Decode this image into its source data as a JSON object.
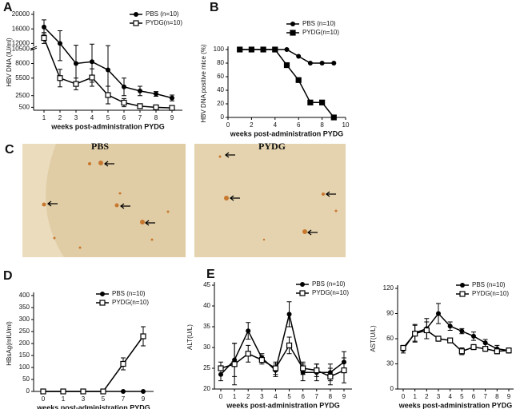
{
  "chart_data": [
    {
      "type": "line",
      "label": "A",
      "ylabel": "HBV DNA (IU/ml)",
      "xlabel": "weeks post-administration PYDG",
      "categories": [
        "1",
        "2",
        "3",
        "4",
        "5",
        "6",
        "7",
        "8",
        "9"
      ],
      "ylim": [
        0,
        20000
      ],
      "ybreak": 10500,
      "yticks": [
        500,
        2500,
        5500,
        8000,
        10500,
        12000,
        16000,
        20000
      ],
      "series": [
        {
          "name": "PBS   (n=10)",
          "color": "#000000",
          "marker": "circle",
          "values": [
            16500,
            12000,
            8000,
            8300,
            6900,
            4000,
            3300,
            2800,
            2100
          ],
          "errors": [
            2000,
            3500,
            3500,
            3500,
            4500,
            1500,
            800,
            400,
            500
          ]
        },
        {
          "name": "PYDG(n=10)",
          "color": "#000000",
          "marker": "open-square",
          "values": [
            13500,
            5500,
            4500,
            5600,
            2600,
            1300,
            700,
            500,
            400
          ],
          "errors": [
            1500,
            1500,
            1000,
            1500,
            1500,
            700,
            300,
            200,
            150
          ]
        }
      ]
    },
    {
      "type": "line",
      "label": "B",
      "ylabel": "HBV DNA positive mice  (%)",
      "xlabel": "weeks post-administration PYDG",
      "x": [
        1,
        2,
        3,
        4,
        5,
        6,
        7,
        8,
        9
      ],
      "xlim": [
        0,
        10
      ],
      "xticks": [
        0,
        2,
        4,
        6,
        8,
        10
      ],
      "ylim": [
        0,
        100
      ],
      "yticks": [
        0,
        20,
        40,
        60,
        80,
        100
      ],
      "series": [
        {
          "name": "PBS   (n=10)",
          "color": "#000000",
          "marker": "circle",
          "values": [
            100,
            100,
            100,
            100,
            100,
            90,
            80,
            80,
            80
          ]
        },
        {
          "name": "PYDG(n=10)",
          "color": "#000000",
          "marker": "square",
          "values": [
            100,
            100,
            100,
            100,
            77,
            55,
            22,
            22,
            0
          ]
        }
      ]
    },
    {
      "type": "line",
      "label": "D",
      "ylabel": "HBsAg(mIU/ml)",
      "xlabel": "weeks post-administration PYDG",
      "categories": [
        "0",
        "1",
        "3",
        "5",
        "7",
        "9"
      ],
      "ylim": [
        0,
        400
      ],
      "yticks": [
        0,
        50,
        100,
        150,
        200,
        250,
        300,
        350,
        400
      ],
      "series": [
        {
          "name": "PBS    (n=10)",
          "color": "#000000",
          "marker": "circle",
          "values": [
            0,
            0,
            0,
            0,
            0,
            0
          ],
          "errors": [
            0,
            0,
            0,
            0,
            0,
            0
          ]
        },
        {
          "name": "PYDG(n=10)",
          "color": "#000000",
          "marker": "open-square",
          "values": [
            0,
            0,
            0,
            0,
            115,
            230
          ],
          "errors": [
            0,
            0,
            0,
            0,
            25,
            40
          ]
        }
      ]
    },
    {
      "type": "line",
      "label": "E",
      "ylabel": "ALT(U/L)",
      "xlabel": "weeks post-administration PYDG",
      "categories": [
        "0",
        "1",
        "2",
        "3",
        "4",
        "5",
        "6",
        "7",
        "8",
        "9"
      ],
      "ylim": [
        20,
        45
      ],
      "yticks": [
        20,
        25,
        30,
        35,
        40,
        45
      ],
      "series": [
        {
          "name": "PBS   (n=10)",
          "color": "#000000",
          "marker": "circle",
          "values": [
            23.5,
            27,
            34,
            27.5,
            24.5,
            38,
            24,
            24,
            24,
            26.5
          ],
          "errors": [
            1.5,
            4,
            2,
            1,
            1.5,
            3,
            2,
            2,
            2,
            2.5
          ]
        },
        {
          "name": "PYDG(n=10)",
          "color": "#000000",
          "marker": "open-square",
          "values": [
            25,
            26,
            28.5,
            27,
            25,
            30.5,
            25,
            24.5,
            23,
            24.5
          ],
          "errors": [
            1.5,
            5,
            2,
            1,
            1.5,
            2,
            1.5,
            1.5,
            2,
            3
          ]
        }
      ]
    },
    {
      "type": "line",
      "ylabel": "AST(U/L)",
      "xlabel": "weeks post-administration PYDG",
      "categories": [
        "0",
        "1",
        "2",
        "3",
        "4",
        "5",
        "6",
        "7",
        "8",
        "9"
      ],
      "ylim": [
        0,
        120
      ],
      "yticks": [
        0,
        30,
        60,
        90,
        120
      ],
      "series": [
        {
          "name": "PBS   (n=10)",
          "color": "#000000",
          "marker": "circle",
          "values": [
            47,
            67,
            72,
            90,
            75,
            69,
            63,
            55,
            48,
            46
          ],
          "errors": [
            4,
            10,
            12,
            12,
            5,
            3,
            5,
            4,
            4,
            3
          ]
        },
        {
          "name": "PYDG(n=10)",
          "color": "#000000",
          "marker": "open-square",
          "values": [
            49,
            66,
            70,
            60,
            58,
            45,
            50,
            48,
            45,
            46
          ],
          "errors": [
            3,
            10,
            10,
            3,
            3,
            4,
            3,
            3,
            3,
            3
          ]
        }
      ]
    }
  ],
  "panel_c": {
    "label": "C",
    "images": [
      {
        "title": "PBS"
      },
      {
        "title": "PYDG"
      }
    ]
  }
}
